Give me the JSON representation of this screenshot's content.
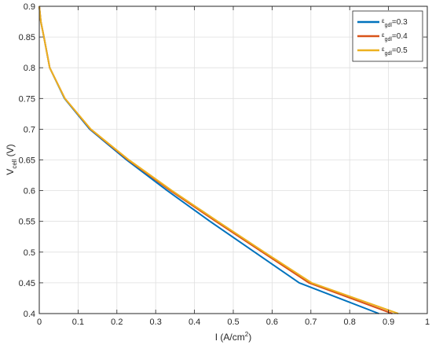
{
  "chart_data": {
    "type": "line",
    "xlabel_main": "I (A/cm",
    "xlabel_sup": "2",
    "xlabel_end": ")",
    "ylabel_main": "V",
    "ylabel_sub": "cell",
    "ylabel_end": " (V)",
    "xlim": [
      0,
      1
    ],
    "ylim": [
      0.4,
      0.9
    ],
    "xticks": [
      "0",
      "0.1",
      "0.2",
      "0.3",
      "0.4",
      "0.5",
      "0.6",
      "0.7",
      "0.8",
      "0.9",
      "1"
    ],
    "yticks": [
      "0.4",
      "0.45",
      "0.5",
      "0.55",
      "0.6",
      "0.65",
      "0.7",
      "0.75",
      "0.8",
      "0.85",
      "0.9"
    ],
    "grid": true,
    "legend_position": "top-right",
    "series": [
      {
        "name_symbol": "ε",
        "name_sub": "gdl",
        "name_value": "=0.3",
        "color": "#0072BD",
        "x": [
          0.0,
          0.004,
          0.012,
          0.027,
          0.065,
          0.13,
          0.225,
          0.33,
          0.44,
          0.555,
          0.67,
          0.78,
          0.875
        ],
        "y": [
          0.9,
          0.875,
          0.85,
          0.8,
          0.75,
          0.7,
          0.65,
          0.6,
          0.55,
          0.5,
          0.45,
          0.4,
          0.4
        ]
      },
      {
        "name_symbol": "ε",
        "name_sub": "gdl",
        "name_value": "=0.4",
        "color": "#D95319",
        "x": [
          0.0,
          0.004,
          0.012,
          0.027,
          0.066,
          0.132,
          0.229,
          0.338,
          0.455,
          0.575,
          0.695,
          0.81,
          0.91
        ],
        "y": [
          0.9,
          0.875,
          0.85,
          0.8,
          0.75,
          0.7,
          0.65,
          0.6,
          0.55,
          0.5,
          0.45,
          0.4,
          0.4
        ]
      },
      {
        "name_symbol": "ε",
        "name_sub": "gdl",
        "name_value": "=0.5",
        "color": "#EDB120",
        "x": [
          0.0,
          0.004,
          0.012,
          0.027,
          0.066,
          0.133,
          0.231,
          0.342,
          0.46,
          0.58,
          0.702,
          0.82,
          0.925
        ],
        "y": [
          0.9,
          0.875,
          0.85,
          0.8,
          0.75,
          0.7,
          0.65,
          0.6,
          0.55,
          0.5,
          0.45,
          0.4,
          0.4
        ]
      }
    ]
  }
}
